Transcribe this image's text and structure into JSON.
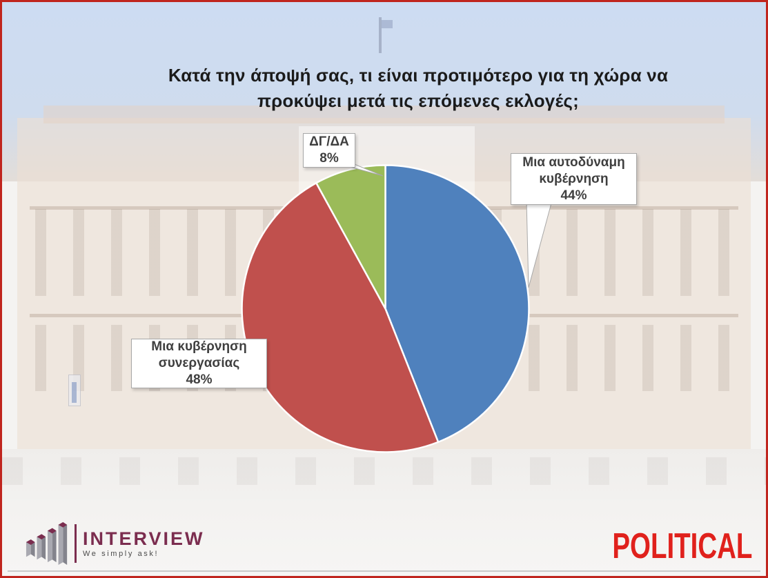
{
  "title": {
    "line1": "Κατά την άποψή σας, τι είναι προτιμότερο για τη χώρα να",
    "line2": "προκύψει μετά τις επόμενες εκλογές;"
  },
  "chart_data": {
    "type": "pie",
    "title": "Κατά την άποψή σας, τι είναι προτιμότερο για τη χώρα να προκύψει μετά τις επόμενες εκλογές;",
    "start_angle_deg": 0,
    "direction": "clockwise",
    "legend_position": "none",
    "slices": [
      {
        "label": "Μια αυτοδύναμη κυβέρνηση",
        "value_pct": 44,
        "color": "#4F81BD",
        "callout_lines": [
          "Μια αυτοδύναμη",
          "κυβέρνηση",
          "44%"
        ]
      },
      {
        "label": "Μια κυβέρνηση συνεργασίας",
        "value_pct": 48,
        "color": "#C0504D",
        "callout_lines": [
          "Μια κυβέρνηση",
          "συνεργασίας",
          "48%"
        ]
      },
      {
        "label": "ΔΓ/ΔΑ",
        "value_pct": 8,
        "color": "#9BBB59",
        "callout_lines": [
          "ΔΓ/ΔΑ",
          "8%"
        ]
      }
    ]
  },
  "branding": {
    "interview": {
      "name": "INTERVIEW",
      "tagline": "We simply ask!",
      "brand_color": "#7b2d4f"
    },
    "political": {
      "name": "POLITICAL",
      "color": "#e0211c"
    }
  },
  "frame": {
    "border_color": "#c0251e"
  }
}
